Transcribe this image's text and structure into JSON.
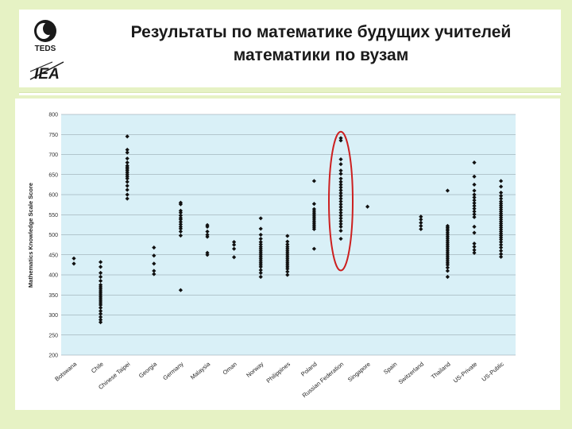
{
  "slide": {
    "title_line1": "Результаты по математике будущих учителей",
    "title_line2": "математики по вузам",
    "logo_teds_text": "TEDS",
    "logo_iea_text": "IEA"
  },
  "colors": {
    "background": "#e6f2c4",
    "plot_area": "#d9f0f7",
    "highlight": "#cc2020",
    "point": "#111111"
  },
  "chart_data": {
    "type": "scatter",
    "title": "",
    "ylabel": "Mathematics Knowledge Scale Score",
    "ylim": [
      200,
      800
    ],
    "yticks": [
      200,
      250,
      300,
      350,
      400,
      450,
      500,
      550,
      600,
      650,
      700,
      750,
      800
    ],
    "grid": true,
    "categories": [
      "Botswana",
      "Chile",
      "Chinese Taipei",
      "Georgia",
      "Germany",
      "Malaysia",
      "Oman",
      "Norway",
      "Philippines",
      "Poland",
      "Russian Federation",
      "Singapore",
      "Spain",
      "Switzerland",
      "Thailand",
      "US-Private",
      "US-Public"
    ],
    "highlight_category": "Russian Federation",
    "points": [
      [
        441,
        428
      ],
      [
        432,
        420,
        405,
        395,
        385,
        375,
        370,
        365,
        360,
        355,
        350,
        345,
        340,
        335,
        330,
        325,
        318,
        310,
        303,
        295,
        288,
        282
      ],
      [
        745,
        712,
        705,
        690,
        680,
        672,
        668,
        664,
        660,
        655,
        650,
        645,
        640,
        632,
        622,
        612,
        600,
        590
      ],
      [
        468,
        448,
        428,
        410,
        402
      ],
      [
        580,
        576,
        560,
        555,
        548,
        542,
        538,
        532,
        526,
        520,
        515,
        508,
        498,
        362
      ],
      [
        524,
        520,
        508,
        500,
        495,
        455,
        450
      ],
      [
        482,
        475,
        465,
        444
      ],
      [
        541,
        515,
        500,
        490,
        482,
        476,
        470,
        465,
        460,
        455,
        450,
        445,
        440,
        435,
        430,
        425,
        420,
        412,
        405,
        395
      ],
      [
        497,
        483,
        476,
        470,
        465,
        460,
        455,
        450,
        445,
        440,
        435,
        430,
        425,
        420,
        415,
        408,
        400
      ],
      [
        634,
        577,
        564,
        559,
        554,
        549,
        544,
        539,
        534,
        529,
        524,
        519,
        514,
        465
      ],
      [
        741,
        735,
        688,
        676,
        660,
        652,
        640,
        632,
        625,
        618,
        611,
        604,
        597,
        590,
        583,
        576,
        569,
        562,
        555,
        548,
        541,
        534,
        527,
        520,
        510,
        490
      ],
      [
        570
      ],
      [],
      [
        545,
        538,
        530,
        522,
        514
      ],
      [
        610,
        522,
        518,
        514,
        510,
        505,
        500,
        495,
        490,
        485,
        480,
        475,
        470,
        465,
        460,
        455,
        450,
        445,
        440,
        435,
        430,
        425,
        418,
        410,
        395
      ],
      [
        680,
        645,
        625,
        610,
        600,
        593,
        586,
        579,
        572,
        565,
        558,
        551,
        544,
        520,
        505,
        478,
        470,
        462,
        455
      ],
      [
        634,
        620,
        605,
        597,
        590,
        583,
        578,
        573,
        568,
        563,
        558,
        553,
        548,
        543,
        538,
        533,
        528,
        523,
        518,
        513,
        508,
        503,
        498,
        493,
        488,
        482,
        475,
        468,
        460,
        452,
        445
      ]
    ]
  }
}
